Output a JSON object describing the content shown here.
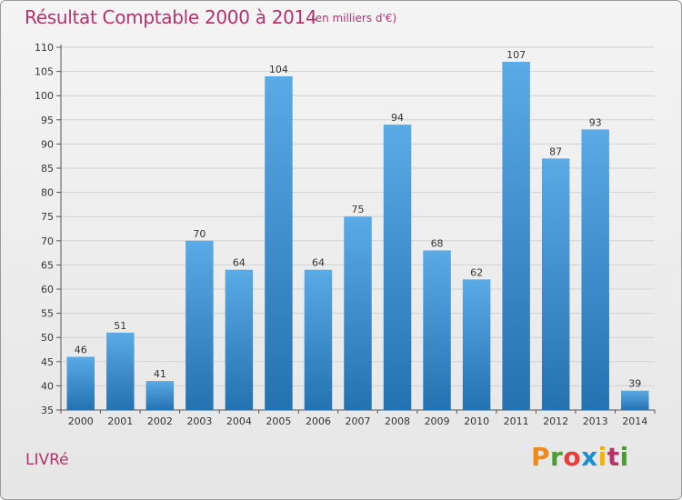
{
  "header": {
    "title": "Résultat Comptable 2000 à 2014",
    "subtitle": "(en milliers d'€)"
  },
  "footer": {
    "town": "LIVRé",
    "logo_letters": [
      "P",
      "r",
      "o",
      "x",
      "i",
      "t",
      "i"
    ],
    "logo_colors": [
      "#f08a1d",
      "#4a9d2e",
      "#e83b3b",
      "#1f8fd0",
      "#f2b400",
      "#b5336a",
      "#4a9d2e"
    ]
  },
  "colors": {
    "title": "#b5336a",
    "bar_top": "#5aaae6",
    "bar_bottom": "#2472b0",
    "gridline": "#d2d2d2",
    "axis": "#555555"
  },
  "chart_data": {
    "type": "bar",
    "title": "Résultat Comptable 2000 à 2014",
    "subtitle": "(en milliers d'€)",
    "categories": [
      "2000",
      "2001",
      "2002",
      "2003",
      "2004",
      "2005",
      "2006",
      "2007",
      "2008",
      "2009",
      "2010",
      "2011",
      "2012",
      "2013",
      "2014"
    ],
    "values": [
      46,
      51,
      41,
      70,
      64,
      104,
      64,
      75,
      94,
      68,
      62,
      107,
      87,
      93,
      39
    ],
    "ylim": [
      35,
      110
    ],
    "yticks": [
      35,
      40,
      45,
      50,
      55,
      60,
      65,
      70,
      75,
      80,
      85,
      90,
      95,
      100,
      105,
      110
    ],
    "grid": true,
    "data_labels": true
  }
}
